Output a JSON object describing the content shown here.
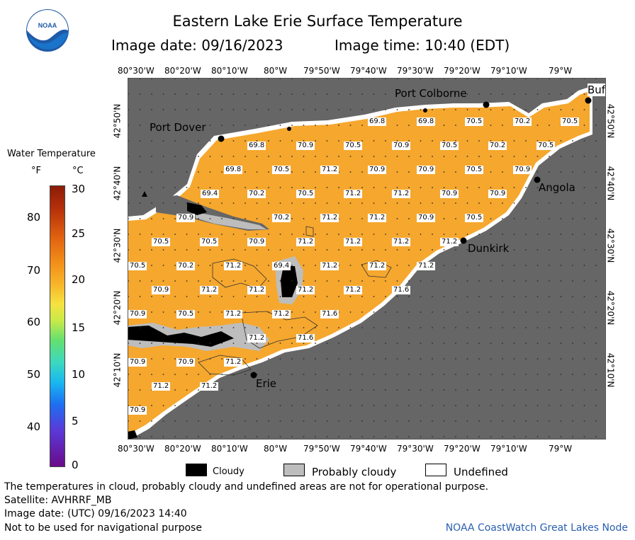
{
  "header": {
    "title": "Eastern Lake Erie Surface Temperature",
    "image_date": "Image date: 09/16/2023",
    "image_time": "Image time: 10:40 (EDT)"
  },
  "logo": {
    "text": "NOAA",
    "icon": "noaa-logo"
  },
  "legend": {
    "title": "Water Temperature",
    "unit_f": "°F",
    "unit_c": "°C",
    "f_ticks": [
      "80",
      "70",
      "60",
      "50",
      "40"
    ],
    "c_ticks": [
      "30",
      "25",
      "20",
      "15",
      "10",
      "5",
      "0"
    ]
  },
  "axes": {
    "lon_labels": [
      "80°30'W",
      "80°20'W",
      "80°10'W",
      "80°W",
      "79°50'W",
      "79°40'W",
      "79°30'W",
      "79°20'W",
      "79°10'W",
      "79°W"
    ],
    "lat_labels": [
      "42°50'N",
      "42°40'N",
      "42°30'N",
      "42°20'N",
      "42°10'N"
    ]
  },
  "places": [
    "Port Colborne",
    "Port Dover",
    "Angola",
    "Dunkirk",
    "Erie",
    "Buf"
  ],
  "temperatures": {
    "r1": [
      "69.8",
      "69.8",
      "70.5",
      "70.2",
      "70.5"
    ],
    "r2": [
      "69.8",
      "70.9",
      "70.5",
      "70.9",
      "70.5",
      "70.2",
      "70.5"
    ],
    "r3": [
      "69.8",
      "70.5",
      "71.2",
      "70.9",
      "70.9",
      "70.5",
      "70.9"
    ],
    "r4": [
      "69.4",
      "70.2",
      "70.5",
      "71.2",
      "71.2",
      "70.9",
      "70.9"
    ],
    "r5": [
      "70.9",
      "70.2",
      "71.2",
      "71.2",
      "70.9",
      "70.5"
    ],
    "r6": [
      "70.5",
      "70.5",
      "70.9",
      "71.2",
      "71.2",
      "71.2",
      "71.2"
    ],
    "r7": [
      "70.5",
      "70.2",
      "71.2",
      "69.4",
      "71.2",
      "71.2",
      "71.2"
    ],
    "r8": [
      "70.9",
      "71.2",
      "71.2",
      "71.2",
      "71.2",
      "71.6"
    ],
    "r9": [
      "70.9",
      "70.5",
      "71.2",
      "71.2",
      "71.6"
    ],
    "r10": [
      "71.2",
      "71.6"
    ],
    "r11": [
      "70.9",
      "70.9",
      "71.2"
    ],
    "r12": [
      "71.2",
      "71.2"
    ],
    "r13": [
      "70.9"
    ]
  },
  "key": {
    "cloudy": "Cloudy",
    "probably_cloudy": "Probably cloudy",
    "undefined": "Undefined"
  },
  "footer": {
    "disclaimer": "The temperatures in cloud, probably cloudy and undefined areas are not for operational purpose.",
    "satellite": "Satellite: AVHRRF_MB",
    "utc_date": "Image date: (UTC) 09/16/2023  14:40",
    "nav_warning": "Not to be used for navigational purpose",
    "credit": "NOAA CoastWatch Great Lakes Node"
  },
  "colors": {
    "land": "#666666",
    "water": "#f6a72e",
    "cloud": "#000000",
    "probably_cloudy": "#bdbdbd",
    "undefined": "#ffffff",
    "credit": "#2a5fb0"
  }
}
